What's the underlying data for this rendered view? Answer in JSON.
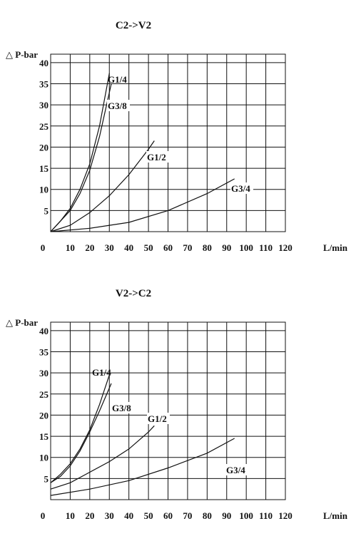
{
  "chart_data": [
    {
      "type": "line",
      "title": "C2->V2",
      "ylabel": "△ P-bar",
      "xlabel": "L/min",
      "x_ticks": [
        0,
        10,
        20,
        30,
        40,
        50,
        60,
        70,
        80,
        90,
        100,
        110,
        120
      ],
      "x_tick_labels": [
        "0",
        "10",
        "20",
        "30",
        "40",
        "50",
        "60",
        "70",
        "80",
        "90",
        "100",
        "110",
        "120"
      ],
      "y_ticks": [
        5,
        10,
        15,
        20,
        25,
        30,
        35,
        40
      ],
      "y_tick_labels": [
        "5",
        "10",
        "15",
        "20",
        "25",
        "30",
        "35",
        "40"
      ],
      "xlim": [
        0,
        120
      ],
      "ylim": [
        0,
        42
      ],
      "grid": true,
      "series": [
        {
          "name": "G1/4",
          "x": [
            0,
            5,
            10,
            15,
            20,
            25,
            30
          ],
          "y": [
            0,
            2.5,
            5.5,
            10,
            16,
            25,
            37.5
          ]
        },
        {
          "name": "G3/8",
          "x": [
            0,
            5,
            10,
            15,
            20,
            25,
            31
          ],
          "y": [
            0,
            2.5,
            5,
            9,
            14.5,
            22.5,
            35
          ]
        },
        {
          "name": "G1/2",
          "x": [
            0,
            10,
            20,
            30,
            40,
            50,
            53
          ],
          "y": [
            0,
            1.5,
            4.5,
            8.5,
            13.5,
            19.5,
            21.5
          ]
        },
        {
          "name": "G3/4",
          "x": [
            0,
            20,
            40,
            60,
            80,
            94
          ],
          "y": [
            0,
            0.8,
            2.2,
            5,
            9,
            12.5
          ]
        }
      ]
    },
    {
      "type": "line",
      "title": "V2->C2",
      "ylabel": "△ P-bar",
      "xlabel": "L/min",
      "x_ticks": [
        0,
        10,
        20,
        30,
        40,
        50,
        60,
        70,
        80,
        90,
        100,
        110,
        120
      ],
      "x_tick_labels": [
        "0",
        "10",
        "20",
        "30",
        "40",
        "50",
        "60",
        "70",
        "80",
        "90",
        "100",
        "110",
        "120"
      ],
      "y_ticks": [
        5,
        10,
        15,
        20,
        25,
        30,
        35,
        40
      ],
      "y_tick_labels": [
        "5",
        "10",
        "15",
        "20",
        "25",
        "30",
        "35",
        "40"
      ],
      "xlim": [
        0,
        120
      ],
      "ylim": [
        0,
        42
      ],
      "grid": true,
      "series": [
        {
          "name": "G1/4",
          "x": [
            0,
            5,
            10,
            15,
            20,
            25,
            30
          ],
          "y": [
            4,
            6,
            8.5,
            12,
            16.5,
            22.5,
            29.5
          ]
        },
        {
          "name": "G3/8",
          "x": [
            0,
            5,
            10,
            15,
            20,
            25,
            31
          ],
          "y": [
            4,
            5.5,
            8,
            11.5,
            16,
            21,
            27.5
          ]
        },
        {
          "name": "G1/2",
          "x": [
            0,
            10,
            20,
            30,
            40,
            50,
            53
          ],
          "y": [
            2.5,
            4,
            6.5,
            9,
            12,
            16,
            17.5
          ]
        },
        {
          "name": "G3/4",
          "x": [
            0,
            20,
            40,
            60,
            80,
            94
          ],
          "y": [
            1,
            2.5,
            4.5,
            7.5,
            11,
            14.5
          ]
        }
      ]
    }
  ]
}
